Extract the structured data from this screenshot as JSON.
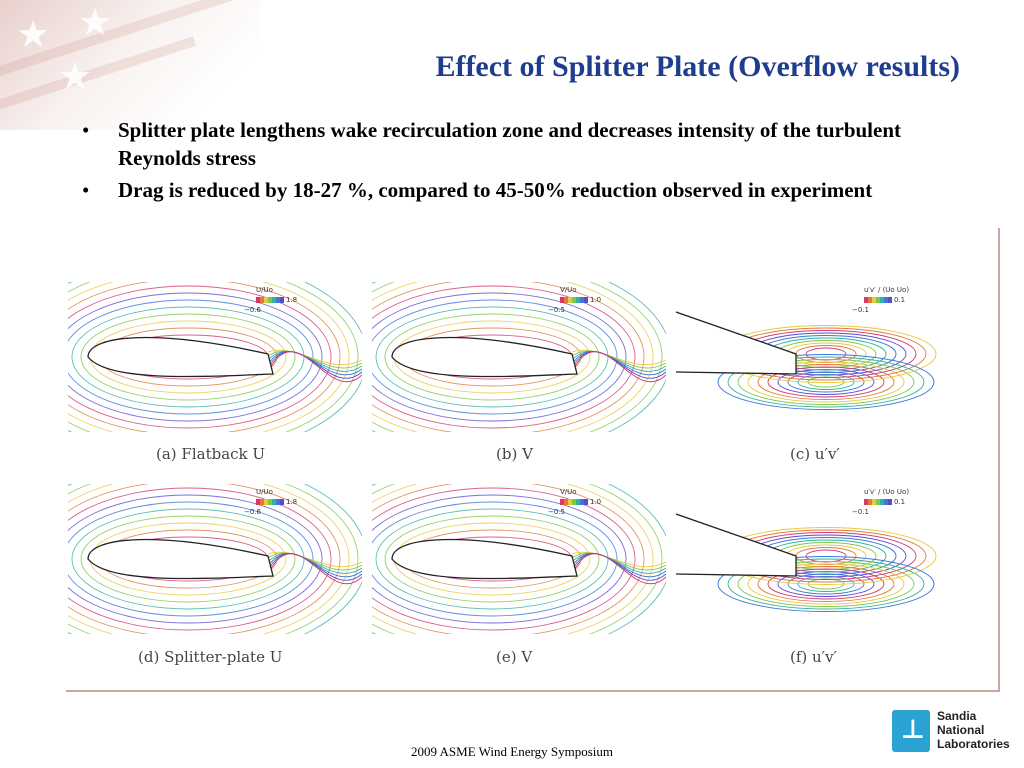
{
  "slide": {
    "title": "Effect of Splitter Plate (Overflow results)",
    "bullets": [
      "Splitter plate lengthens wake recirculation zone and decreases intensity of the turbulent Reynolds stress",
      "Drag is reduced by 18-27 %, compared to 45-50% reduction observed in experiment"
    ],
    "bullet_glyph": "•"
  },
  "figure": {
    "panels": [
      {
        "caption": "(a) Flatback U",
        "cb_title": "U/Uo",
        "cb_max": "1.8",
        "cb_min": "−0.6",
        "kind": "airfoil"
      },
      {
        "caption": "(b) V",
        "cb_title": "V/Uo",
        "cb_max": "1.0",
        "cb_min": "−0.5",
        "kind": "airfoil"
      },
      {
        "caption": "(c) u′v′",
        "cb_title": "u′v′ / (Uo Uo)",
        "cb_max": "0.1",
        "cb_min": "−0.1",
        "kind": "wake"
      },
      {
        "caption": "(d) Splitter-plate U",
        "cb_title": "U/Uo",
        "cb_max": "1.8",
        "cb_min": "−0.6",
        "kind": "airfoil"
      },
      {
        "caption": "(e) V",
        "cb_title": "V/Uo",
        "cb_max": "1.0",
        "cb_min": "−0.5",
        "kind": "airfoil"
      },
      {
        "caption": "(f) u′v′",
        "cb_title": "u′v′ / (Uo Uo)",
        "cb_max": "0.1",
        "cb_min": "−0.1",
        "kind": "wake"
      }
    ]
  },
  "footer": {
    "text": "2009 ASME Wind Energy Symposium",
    "logo_lines": [
      "Sandia",
      "National",
      "Laboratories"
    ]
  },
  "colors": {
    "title": "#1f3d8f",
    "logo": "#2aa3d4",
    "contour_palette": [
      "#d23a6e",
      "#e07a3a",
      "#e8c840",
      "#7cc84a",
      "#36b0a0",
      "#3a78d8",
      "#5a4ad0"
    ]
  }
}
